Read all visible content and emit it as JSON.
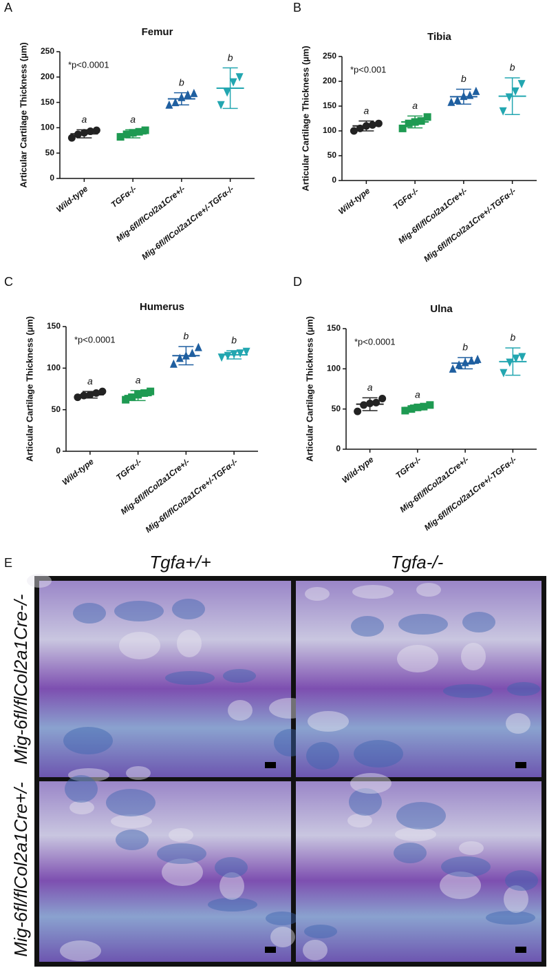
{
  "chart_data": [
    {
      "type": "dot",
      "panel": "A",
      "title": "Femur",
      "ylabel": "Articular Cartilage Thickness (µm)",
      "annotation": "*p<0.0001",
      "ylim": [
        0,
        250
      ],
      "yticks": [
        0,
        50,
        100,
        150,
        200,
        250
      ],
      "categories": [
        "Wild-type",
        "TGFα-/-",
        "Mig-6fl/flCol2a1Cre+/-",
        "Mig-6fl/flCol2a1Cre+/-TGFα-/-"
      ],
      "groups": [
        {
          "color": "#222222",
          "marker": "circle",
          "points": [
            80,
            87,
            90,
            93,
            95
          ],
          "mean": 88,
          "sd": 8,
          "letter": "a"
        },
        {
          "color": "#1e9a52",
          "marker": "square",
          "points": [
            82,
            87,
            90,
            92,
            95
          ],
          "mean": 88,
          "sd": 8,
          "letter": "a"
        },
        {
          "color": "#1f5fa0",
          "marker": "triangle-up",
          "points": [
            145,
            150,
            160,
            165,
            168
          ],
          "mean": 157,
          "sd": 12,
          "letter": "b"
        },
        {
          "color": "#22a6b0",
          "marker": "triangle-down",
          "points": [
            145,
            170,
            190,
            200
          ],
          "mean": 178,
          "sd": 40,
          "letter": "b"
        }
      ]
    },
    {
      "type": "dot",
      "panel": "B",
      "title": "Tibia",
      "ylabel": "Articular Cartilage Thickness (µm)",
      "annotation": "*p<0.001",
      "ylim": [
        0,
        250
      ],
      "yticks": [
        0,
        50,
        100,
        150,
        200,
        250
      ],
      "categories": [
        "Wild-type",
        "TGFα-/-",
        "Mig-6fl/flCol2a1Cre+/-",
        "Mig-6fl/flCol2a1Cre+/-TGFα-/-"
      ],
      "groups": [
        {
          "color": "#222222",
          "marker": "circle",
          "points": [
            100,
            105,
            110,
            112,
            115
          ],
          "mean": 110,
          "sd": 10,
          "letter": "a"
        },
        {
          "color": "#1e9a52",
          "marker": "square",
          "points": [
            105,
            115,
            118,
            120,
            128
          ],
          "mean": 118,
          "sd": 12,
          "letter": "a"
        },
        {
          "color": "#1f5fa0",
          "marker": "triangle-up",
          "points": [
            158,
            162,
            170,
            172,
            180
          ],
          "mean": 169,
          "sd": 15,
          "letter": "b"
        },
        {
          "color": "#22a6b0",
          "marker": "triangle-down",
          "points": [
            140,
            168,
            180,
            195
          ],
          "mean": 170,
          "sd": 37,
          "letter": "b"
        }
      ]
    },
    {
      "type": "dot",
      "panel": "C",
      "title": "Humerus",
      "ylabel": "Articular Cartilage Thickness (µm)",
      "annotation": "*p<0.0001",
      "ylim": [
        0,
        150
      ],
      "yticks": [
        0,
        50,
        100,
        150
      ],
      "categories": [
        "Wild-type",
        "TGFα-/-",
        "Mig-6fl/flCol2a1Cre+/-",
        "Mig-6fl/flCol2a1Cre+/-TGFα-/-"
      ],
      "groups": [
        {
          "color": "#222222",
          "marker": "circle",
          "points": [
            65,
            67,
            68,
            70,
            72
          ],
          "mean": 68,
          "sd": 4,
          "letter": "a"
        },
        {
          "color": "#1e9a52",
          "marker": "square",
          "points": [
            62,
            65,
            68,
            70,
            72
          ],
          "mean": 67,
          "sd": 6,
          "letter": "a"
        },
        {
          "color": "#1f5fa0",
          "marker": "triangle-up",
          "points": [
            105,
            112,
            115,
            118,
            125
          ],
          "mean": 115,
          "sd": 11,
          "letter": "b"
        },
        {
          "color": "#22a6b0",
          "marker": "triangle-down",
          "points": [
            113,
            115,
            117,
            118,
            120
          ],
          "mean": 116,
          "sd": 5,
          "letter": "b"
        }
      ]
    },
    {
      "type": "dot",
      "panel": "D",
      "title": "Ulna",
      "ylabel": "Articular Cartilage Thickness (µm)",
      "annotation": "*p<0.0001",
      "ylim": [
        0,
        150
      ],
      "yticks": [
        0,
        50,
        100,
        150
      ],
      "categories": [
        "Wild-type",
        "TGFα-/-",
        "Mig-6fl/flCol2a1Cre+/-",
        "Mig-6fl/flCol2a1Cre+/-TGFα-/-"
      ],
      "groups": [
        {
          "color": "#222222",
          "marker": "circle",
          "points": [
            47,
            55,
            57,
            58,
            63
          ],
          "mean": 56,
          "sd": 8,
          "letter": "a"
        },
        {
          "color": "#1e9a52",
          "marker": "square",
          "points": [
            48,
            50,
            52,
            53,
            55
          ],
          "mean": 52,
          "sd": 3,
          "letter": "a"
        },
        {
          "color": "#1f5fa0",
          "marker": "triangle-up",
          "points": [
            100,
            105,
            108,
            110,
            112
          ],
          "mean": 107,
          "sd": 7,
          "letter": "b"
        },
        {
          "color": "#22a6b0",
          "marker": "triangle-down",
          "points": [
            95,
            108,
            113,
            115
          ],
          "mean": 109,
          "sd": 17,
          "letter": "b"
        }
      ]
    }
  ],
  "histology": {
    "panel": "E",
    "columns": [
      "Tgfa+/+",
      "Tgfa-/-"
    ],
    "rows": [
      "Mig-6fl/flCol2a1Cre-/-",
      "Mig-6fl/flCol2a1Cre+/-"
    ]
  }
}
